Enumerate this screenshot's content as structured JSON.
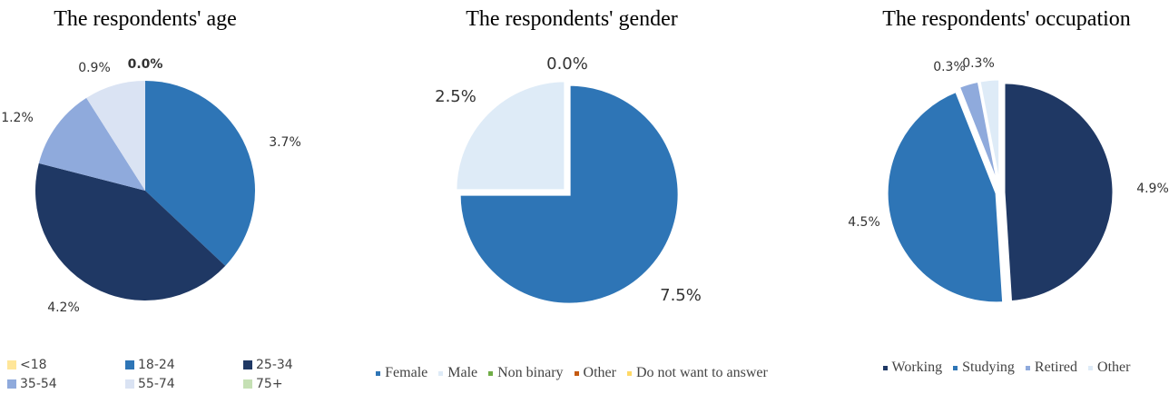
{
  "chart_data": [
    {
      "type": "pie",
      "title": "The respondents' age",
      "categories": [
        "<18",
        "18-24",
        "25-34",
        "35-54",
        "55-74",
        "75+"
      ],
      "values": [
        0.0,
        3.7,
        4.2,
        1.2,
        0.9,
        0.0
      ],
      "labels": [
        "",
        "3.7%",
        "4.2%",
        "1.2%",
        "0.9%",
        "0.0%"
      ],
      "colors": [
        "#ffe699",
        "#2e75b6",
        "#1f3864",
        "#8faadc",
        "#dae3f3",
        "#c5e0b4"
      ],
      "legend": "bottom"
    },
    {
      "type": "pie",
      "title": "The respondents' gender",
      "categories": [
        "Female",
        "Male",
        "Non binary",
        "Other",
        "Do not want to answer"
      ],
      "values": [
        7.5,
        2.5,
        0.0,
        0.0,
        0.0
      ],
      "labels": [
        "7.5%",
        "2.5%",
        "",
        "",
        "0.0%"
      ],
      "colors": [
        "#2e75b6",
        "#deebf7",
        "#70ad47",
        "#c55a11",
        "#ffd966"
      ],
      "legend": "bottom"
    },
    {
      "type": "pie",
      "title": "The respondents' occupation",
      "categories": [
        "Working",
        "Studying",
        "Retired",
        "Other"
      ],
      "values": [
        4.9,
        4.5,
        0.3,
        0.3
      ],
      "labels": [
        "4.9%",
        "4.5%",
        "0.3%",
        "0.3%"
      ],
      "colors": [
        "#1f3864",
        "#2e75b6",
        "#8faadc",
        "#deebf7"
      ],
      "legend": "bottom"
    }
  ]
}
